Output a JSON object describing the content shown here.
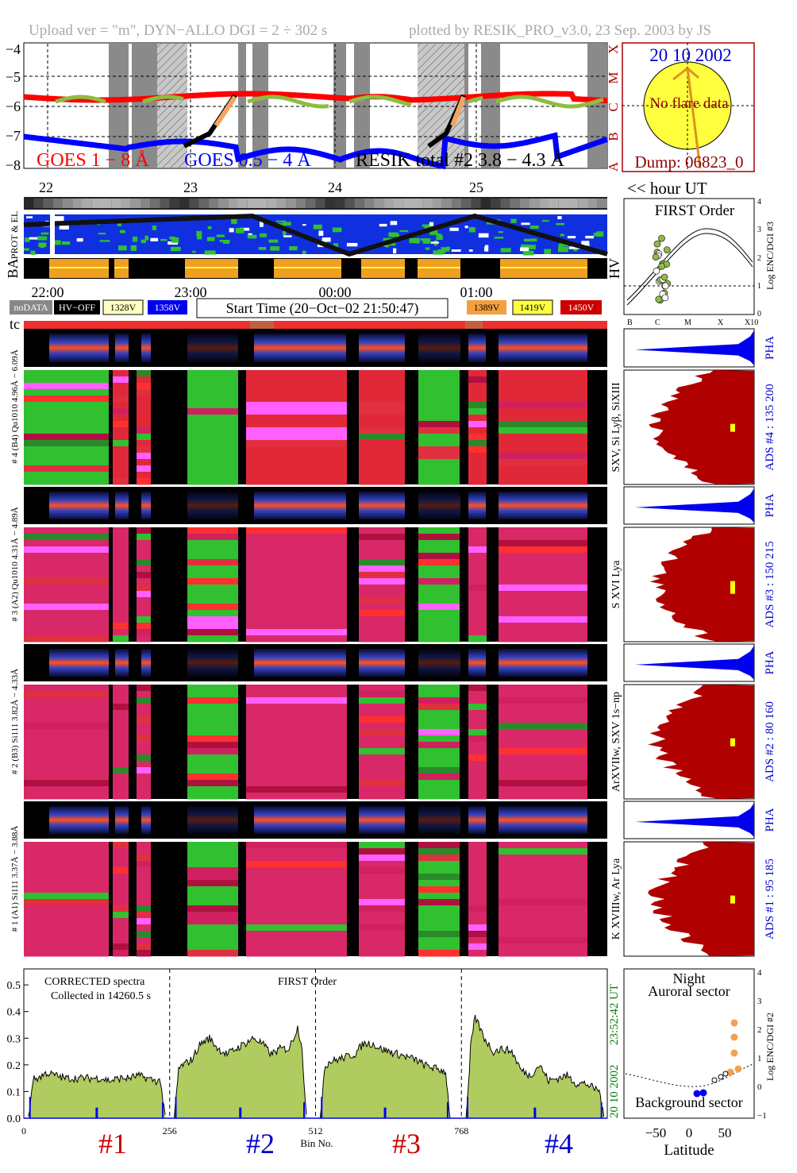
{
  "header": {
    "left": "Upload ver = \"m\", DYN−ALLO DGI =   2 ÷ 302 s",
    "right": "plotted by RESIK_PRO_v3.0, 23 Sep. 2003 by JS"
  },
  "goes": {
    "y_ticks": [
      "−4",
      "−5",
      "−6",
      "−7",
      "−8"
    ],
    "class_letters": [
      "X",
      "M",
      "C",
      "B",
      "A"
    ],
    "label_1_8": "GOES 1 − 8 Å",
    "label_05_4": "GOES 0.5 − 4 Å",
    "label_resik": "RESIK total #2  3.8 − 4.3 Å",
    "colors": {
      "long": "#ff0000",
      "short": "#0000ff",
      "resik": "#000000",
      "green": "#8fbc3f",
      "orange": "#f4a460",
      "shade": "#808080"
    }
  },
  "sun": {
    "date": "20 10 2002",
    "noflare": "No flare data",
    "dump": "Dump: 06823_0"
  },
  "hours": {
    "labels": [
      "22",
      "23",
      "24",
      "25"
    ],
    "hour_ut": "<< hour UT"
  },
  "strip_labels": {
    "prot": "PROT & EL",
    "ba": "BA",
    "hv": "HV"
  },
  "time_axis": {
    "labels": [
      "22:00",
      "23:00",
      "00:00",
      "01:00"
    ]
  },
  "legend": {
    "nodata": "noDATA",
    "hvoff": "HV−OFF",
    "v1": "1328V",
    "v2": "1358V",
    "start_time": "Start Time (20−Oct−02 21:50:47)",
    "v3": "1389V",
    "v4": "1419V",
    "v5": "1450V",
    "tc": "tc"
  },
  "first_order": {
    "title": "FIRST Order",
    "ylabel": "Log ENC/DGI #3",
    "y_ticks": [
      "0",
      "1",
      "2",
      "3",
      "4"
    ],
    "x_ticks": [
      "B",
      "C",
      "M",
      "X",
      "X10"
    ]
  },
  "channels": [
    {
      "left_label": "# 4 (B4) Qu1010 4.96Å − 6.09Å",
      "spec_label": "SXV, Si Lyβ, SiXIII",
      "ads_label": "ADS #4 :   135 200",
      "ads_color": "#0000cc"
    },
    {
      "left_label": "# 3 (A2) Qu1010 4.31Å − 4.89Å",
      "spec_label": "S XVI Lya",
      "ads_label": "ADS #3 :   150 215",
      "ads_color": "#0000cc"
    },
    {
      "left_label": "# 2 (B3) Si111 3.82Å − 4.33Å",
      "spec_label": "ArXVIIw, SXV 1s−np",
      "ads_label": "ADS #2 :    80 160",
      "ads_color": "#0000cc"
    },
    {
      "left_label": "# 1 (A1) Si111 3.37Å − 3.88Å",
      "spec_label": "K XVIIIw, Ar Lya",
      "ads_label": "ADS #1 :    95 185",
      "ads_color": "#0000cc"
    }
  ],
  "pha_label": "PHA",
  "spectrum": {
    "title": "CORRECTED spectra",
    "collected": "Collected in 14260.5 s",
    "order": "FIRST Order",
    "xlabel": "Bin No.",
    "date_time": "20 10 2002",
    "clock": "23:52:42 UT",
    "channel_ids": [
      {
        "label": "#1",
        "color": "#cc0000"
      },
      {
        "label": "#2",
        "color": "#0000cc"
      },
      {
        "label": "#3",
        "color": "#cc0000"
      },
      {
        "label": "#4",
        "color": "#0000cc"
      }
    ]
  },
  "orbit": {
    "night": "Night",
    "auroral": "Auroral sector",
    "background": "Background sector",
    "xlabel": "Latitude",
    "ylabel": "Log ENC/DGI #2",
    "x_ticks": [
      "−50",
      "0",
      "50"
    ],
    "y_ticks": [
      "−1",
      "0",
      "1",
      "2",
      "3",
      "4"
    ]
  },
  "chart_data": {
    "type": "bar",
    "title": "CORRECTED spectra",
    "xlabel": "Bin No.",
    "ylabel": "",
    "x_ticks": [
      0,
      256,
      512,
      768
    ],
    "xlim": [
      0,
      1024
    ],
    "y_ticks": [
      0.0,
      0.1,
      0.2,
      0.3,
      0.4,
      0.5
    ],
    "ylim": [
      0,
      0.56
    ],
    "channel_boundaries": [
      256,
      512,
      768
    ],
    "series": [
      {
        "name": "#1",
        "bins": [
          8,
          248
        ],
        "levels": [
          0.14,
          0.15,
          0.17,
          0.16,
          0.15,
          0.15,
          0.15,
          0.15,
          0.15,
          0.14,
          0.15,
          0.15,
          0.16,
          0.15,
          0.14,
          0.14
        ]
      },
      {
        "name": "#2",
        "bins": [
          264,
          496
        ],
        "levels": [
          0.17,
          0.2,
          0.22,
          0.28,
          0.3,
          0.26,
          0.24,
          0.26,
          0.28,
          0.3,
          0.28,
          0.24,
          0.26,
          0.26,
          0.34,
          0.2
        ]
      },
      {
        "name": "#3",
        "bins": [
          520,
          748
        ],
        "levels": [
          0.17,
          0.21,
          0.22,
          0.23,
          0.24,
          0.28,
          0.28,
          0.26,
          0.25,
          0.24,
          0.23,
          0.22,
          0.2,
          0.19,
          0.18,
          0.17
        ]
      },
      {
        "name": "#4",
        "bins": [
          776,
          1018
        ],
        "levels": [
          0.15,
          0.38,
          0.3,
          0.25,
          0.26,
          0.25,
          0.18,
          0.16,
          0.2,
          0.14,
          0.15,
          0.16,
          0.13,
          0.13,
          0.11,
          0.1
        ]
      }
    ]
  }
}
